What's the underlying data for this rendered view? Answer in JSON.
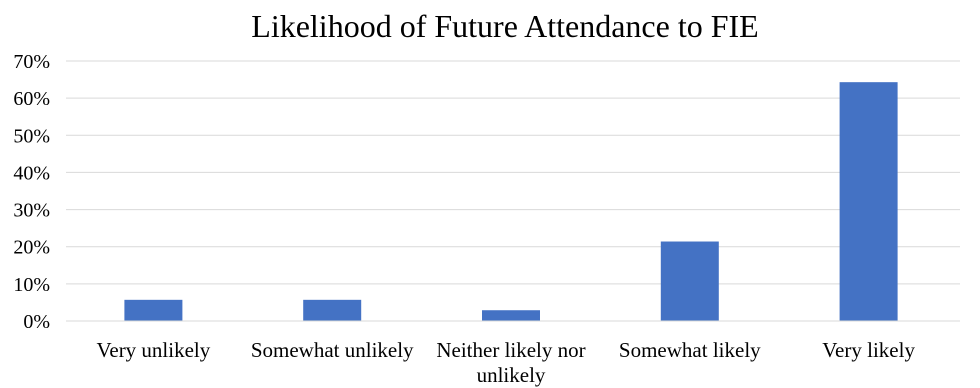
{
  "chart_data": {
    "type": "bar",
    "title": "Likelihood of Future Attendance to FIE",
    "categories": [
      "Very unlikely",
      "Somewhat unlikely",
      "Neither likely nor unlikely",
      "Somewhat likely",
      "Very likely"
    ],
    "category_label_lines": [
      [
        "Very unlikely"
      ],
      [
        "Somewhat unlikely"
      ],
      [
        "Neither likely nor",
        "unlikely"
      ],
      [
        "Somewhat likely"
      ],
      [
        "Very likely"
      ]
    ],
    "values": [
      5.7,
      5.7,
      2.9,
      21.4,
      64.3
    ],
    "ylim": [
      0,
      70
    ],
    "y_ticks": [
      0,
      10,
      20,
      30,
      40,
      50,
      60,
      70
    ],
    "y_tick_labels": [
      "0%",
      "10%",
      "20%",
      "30%",
      "40%",
      "50%",
      "60%",
      "70%"
    ],
    "xlabel": "",
    "ylabel": "",
    "grid": true,
    "legend": "none",
    "bar_color": "#4472C4",
    "grid_color": "#D9D9D9"
  }
}
